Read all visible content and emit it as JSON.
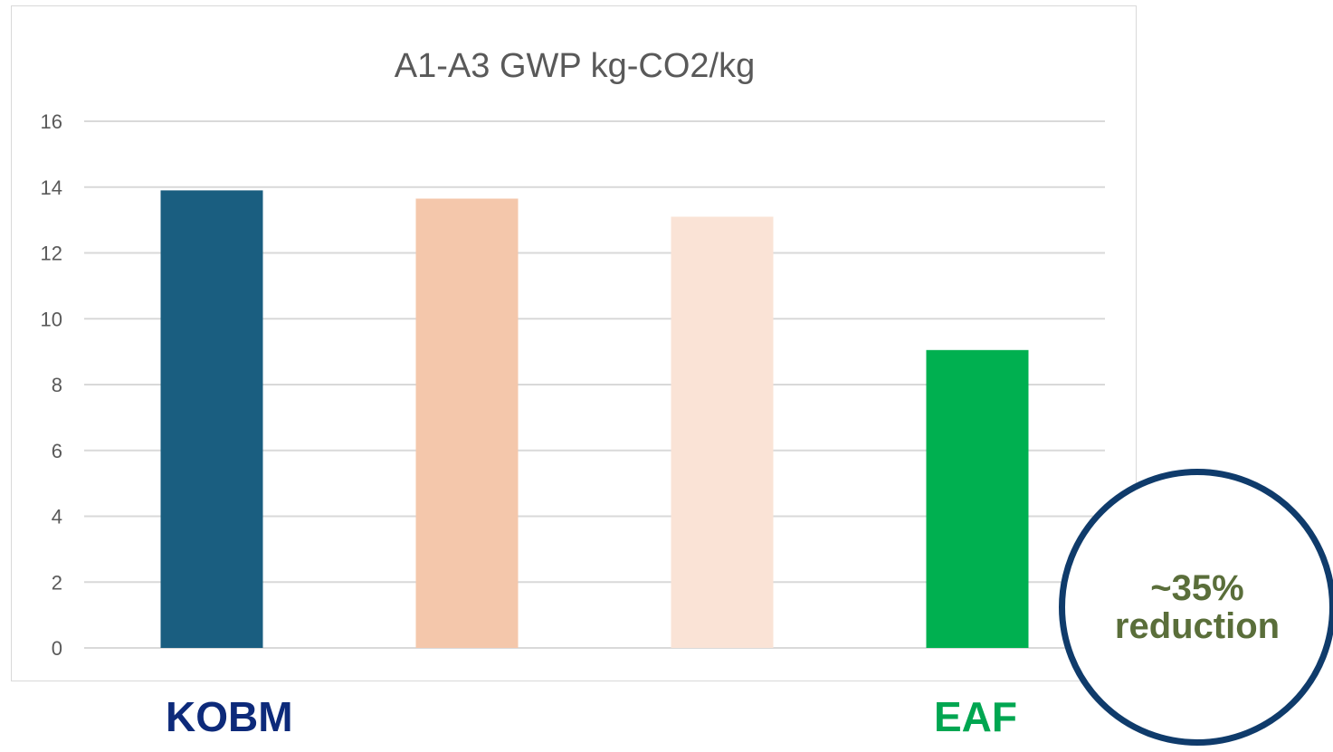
{
  "chart_data": {
    "type": "bar",
    "title": "A1-A3 GWP kg-CO2/kg",
    "xlabel": "",
    "ylabel": "",
    "categories": [
      "KOBM",
      "",
      "",
      "EAF"
    ],
    "values": [
      13.9,
      13.65,
      13.1,
      9.05
    ],
    "bar_colors": [
      "#1a5e80",
      "#f4c7ab",
      "#fae3d6",
      "#00b050"
    ],
    "ylim": [
      0,
      16
    ],
    "yticks": [
      0,
      2,
      4,
      6,
      8,
      10,
      12,
      14,
      16
    ],
    "grid": true,
    "legend": "none"
  },
  "category_labels": {
    "kobm": "KOBM",
    "eaf": "EAF",
    "kobm_color": "#0d2a7a",
    "eaf_color": "#00a651"
  },
  "callout": {
    "line1": "~35%",
    "line2": "reduction",
    "border_color": "#0f3b6b",
    "text_color": "#5a6e3a"
  }
}
